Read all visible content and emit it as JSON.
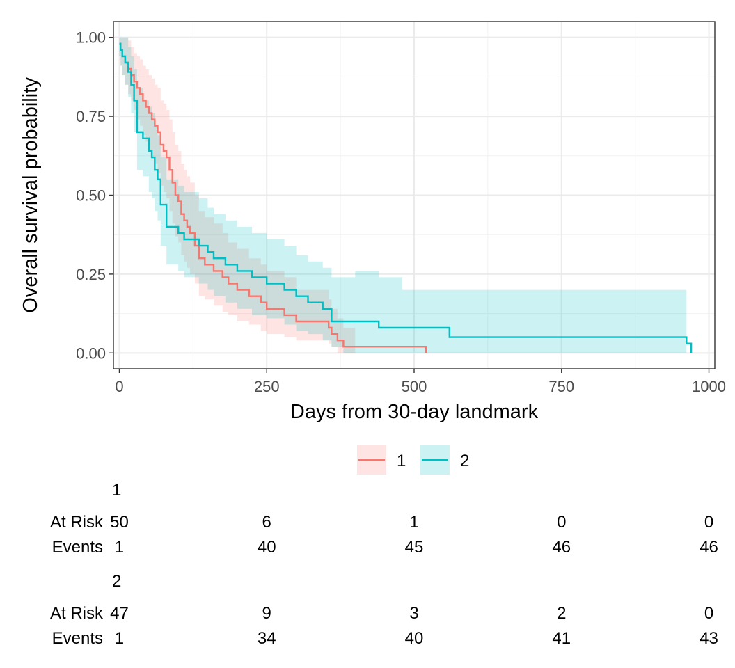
{
  "chart_data": {
    "type": "line",
    "subtype": "kaplan-meier step curves with confidence bands",
    "xlabel": "Days from 30-day landmark",
    "ylabel": "Overall survival probability",
    "xlim": [
      -10,
      1010
    ],
    "ylim": [
      -0.05,
      1.05
    ],
    "x_ticks": [
      0,
      250,
      500,
      750,
      1000
    ],
    "x_tick_labels": [
      "0",
      "250",
      "500",
      "750",
      "1000"
    ],
    "y_ticks": [
      0,
      0.25,
      0.5,
      0.75,
      1
    ],
    "y_tick_labels": [
      "0.00",
      "0.25",
      "0.50",
      "0.75",
      "1.00"
    ],
    "grid": true,
    "legend_position": "bottom",
    "series": [
      {
        "name": "1",
        "color": "#F8766D",
        "band_color": "#F8766D",
        "x": [
          0,
          2,
          5,
          10,
          15,
          20,
          25,
          30,
          35,
          40,
          45,
          50,
          55,
          60,
          65,
          70,
          75,
          80,
          85,
          90,
          95,
          100,
          105,
          110,
          115,
          120,
          128,
          135,
          145,
          160,
          175,
          185,
          200,
          220,
          240,
          250,
          280,
          300,
          320,
          340,
          355,
          360,
          370,
          380,
          400,
          440,
          460,
          480,
          500,
          520
        ],
        "y": [
          0.98,
          0.96,
          0.94,
          0.92,
          0.9,
          0.88,
          0.86,
          0.84,
          0.82,
          0.8,
          0.78,
          0.76,
          0.74,
          0.72,
          0.7,
          0.66,
          0.64,
          0.62,
          0.58,
          0.54,
          0.5,
          0.48,
          0.44,
          0.42,
          0.4,
          0.38,
          0.34,
          0.3,
          0.28,
          0.26,
          0.24,
          0.22,
          0.2,
          0.18,
          0.16,
          0.14,
          0.12,
          0.1,
          0.1,
          0.1,
          0.08,
          0.06,
          0.04,
          0.02,
          0.02,
          0.02,
          0.02,
          0.02,
          0.02,
          0.0
        ],
        "lower": [
          0.94,
          0.91,
          0.88,
          0.85,
          0.82,
          0.8,
          0.77,
          0.74,
          0.72,
          0.69,
          0.67,
          0.64,
          0.62,
          0.6,
          0.57,
          0.53,
          0.51,
          0.49,
          0.45,
          0.41,
          0.37,
          0.35,
          0.31,
          0.29,
          0.27,
          0.25,
          0.22,
          0.18,
          0.17,
          0.15,
          0.13,
          0.12,
          0.1,
          0.09,
          0.07,
          0.06,
          0.05,
          0.04,
          0.04,
          0.04,
          0.03,
          0.02,
          0.0,
          0.0,
          0.0,
          0.0,
          0.0,
          0.0,
          0.0,
          0.0
        ],
        "upper": [
          1.0,
          1.0,
          1.0,
          1.0,
          0.99,
          0.97,
          0.95,
          0.94,
          0.93,
          0.91,
          0.9,
          0.88,
          0.87,
          0.85,
          0.84,
          0.8,
          0.79,
          0.77,
          0.74,
          0.7,
          0.66,
          0.64,
          0.6,
          0.58,
          0.56,
          0.54,
          0.5,
          0.45,
          0.43,
          0.41,
          0.38,
          0.35,
          0.33,
          0.3,
          0.28,
          0.26,
          0.24,
          0.2,
          0.2,
          0.2,
          0.17,
          0.14,
          0.11,
          0.08,
          0.0,
          0.0,
          0.0,
          0.0,
          0.0,
          0.0
        ]
      },
      {
        "name": "2",
        "color": "#00BFC4",
        "band_color": "#00BFC4",
        "x": [
          0,
          2,
          5,
          10,
          15,
          20,
          25,
          30,
          40,
          50,
          55,
          60,
          65,
          70,
          80,
          90,
          100,
          110,
          120,
          135,
          150,
          160,
          180,
          200,
          225,
          250,
          280,
          300,
          320,
          345,
          360,
          380,
          400,
          440,
          480,
          520,
          560,
          600,
          700,
          800,
          900,
          962,
          970
        ],
        "y": [
          0.98,
          0.96,
          0.94,
          0.92,
          0.89,
          0.85,
          0.8,
          0.7,
          0.68,
          0.64,
          0.62,
          0.58,
          0.55,
          0.47,
          0.4,
          0.4,
          0.38,
          0.36,
          0.36,
          0.34,
          0.32,
          0.3,
          0.28,
          0.26,
          0.24,
          0.22,
          0.2,
          0.18,
          0.16,
          0.14,
          0.1,
          0.1,
          0.1,
          0.08,
          0.08,
          0.08,
          0.05,
          0.05,
          0.05,
          0.05,
          0.05,
          0.03,
          0.0
        ],
        "lower": [
          0.94,
          0.91,
          0.88,
          0.85,
          0.81,
          0.76,
          0.7,
          0.58,
          0.56,
          0.51,
          0.49,
          0.45,
          0.42,
          0.34,
          0.28,
          0.28,
          0.26,
          0.24,
          0.24,
          0.22,
          0.2,
          0.18,
          0.16,
          0.14,
          0.12,
          0.11,
          0.09,
          0.07,
          0.06,
          0.04,
          0.02,
          0.0,
          0.0,
          0.0,
          0.0,
          0.0,
          0.0,
          0.0,
          0.0,
          0.0,
          0.0,
          0.0,
          0.0
        ],
        "upper": [
          1.0,
          1.0,
          1.0,
          1.0,
          0.97,
          0.94,
          0.9,
          0.84,
          0.8,
          0.78,
          0.76,
          0.72,
          0.69,
          0.62,
          0.55,
          0.55,
          0.53,
          0.51,
          0.51,
          0.49,
          0.46,
          0.44,
          0.42,
          0.4,
          0.38,
          0.36,
          0.34,
          0.31,
          0.29,
          0.27,
          0.24,
          0.24,
          0.26,
          0.24,
          0.2,
          0.2,
          0.2,
          0.2,
          0.2,
          0.2,
          0.2,
          0.0,
          0.0
        ]
      }
    ],
    "risk_table": {
      "row_labels": [
        "At Risk",
        "Events"
      ],
      "times": [
        0,
        250,
        500,
        750,
        1000
      ],
      "groups": [
        {
          "name": "1",
          "at_risk": [
            "50",
            "6",
            "1",
            "0",
            "0"
          ],
          "events": [
            "1",
            "40",
            "45",
            "46",
            "46"
          ]
        },
        {
          "name": "2",
          "at_risk": [
            "47",
            "9",
            "3",
            "2",
            "0"
          ],
          "events": [
            "1",
            "34",
            "40",
            "41",
            "43"
          ]
        }
      ]
    }
  }
}
